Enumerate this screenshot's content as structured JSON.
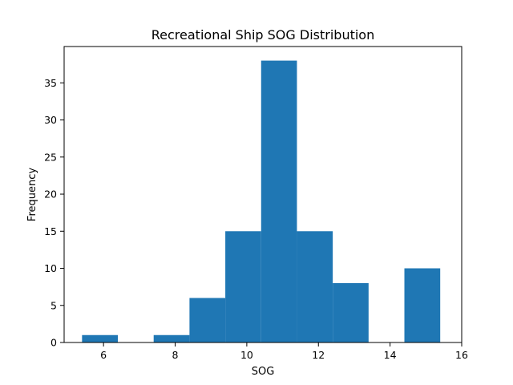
{
  "chart_data": {
    "type": "bar",
    "title": "Recreational Ship SOG Distribution",
    "xlabel": "SOG",
    "ylabel": "Frequency",
    "bins": [
      {
        "x0": 5.4,
        "x1": 6.4,
        "value": 1
      },
      {
        "x0": 6.4,
        "x1": 7.4,
        "value": 0
      },
      {
        "x0": 7.4,
        "x1": 8.4,
        "value": 1
      },
      {
        "x0": 8.4,
        "x1": 9.4,
        "value": 6
      },
      {
        "x0": 9.4,
        "x1": 10.4,
        "value": 15
      },
      {
        "x0": 10.4,
        "x1": 11.4,
        "value": 38
      },
      {
        "x0": 11.4,
        "x1": 12.4,
        "value": 15
      },
      {
        "x0": 12.4,
        "x1": 13.4,
        "value": 8
      },
      {
        "x0": 13.4,
        "x1": 14.4,
        "value": 0
      },
      {
        "x0": 14.4,
        "x1": 15.4,
        "value": 10
      }
    ],
    "bar_color": "#1f77b4",
    "xlim": [
      4.9,
      16.0
    ],
    "ylim": [
      0,
      39.9
    ],
    "xticks": [
      6,
      8,
      10,
      12,
      14,
      16
    ],
    "yticks": [
      0,
      5,
      10,
      15,
      20,
      25,
      30,
      35
    ],
    "grid": false,
    "legend": "none"
  }
}
